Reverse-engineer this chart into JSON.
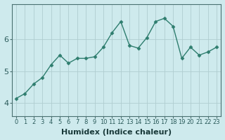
{
  "x": [
    0,
    1,
    2,
    3,
    4,
    5,
    6,
    7,
    8,
    9,
    10,
    11,
    12,
    13,
    14,
    15,
    16,
    17,
    18,
    19,
    20,
    21,
    22,
    23
  ],
  "y": [
    4.15,
    4.3,
    4.6,
    4.8,
    5.2,
    5.5,
    5.25,
    5.4,
    5.4,
    5.45,
    5.75,
    6.2,
    6.55,
    5.8,
    5.72,
    6.05,
    6.55,
    6.65,
    6.4,
    5.4,
    5.75,
    5.5,
    5.6,
    5.75
  ],
  "line_color": "#2e7d6e",
  "marker": "D",
  "marker_size": 2.5,
  "bg_color": "#ceeaed",
  "grid_color": "#b0cdd0",
  "xlabel": "Humidex (Indice chaleur)",
  "xlabel_fontsize": 8,
  "xlabel_fontweight": "bold",
  "ytick_labels": [
    "4",
    "5",
    "6"
  ],
  "ytick_values": [
    4,
    5,
    6
  ],
  "ylim": [
    3.6,
    7.1
  ],
  "xlim": [
    -0.5,
    23.5
  ],
  "xtick_fontsize": 6,
  "ytick_fontsize": 8,
  "spine_color": "#4a7070",
  "linewidth": 1.0
}
